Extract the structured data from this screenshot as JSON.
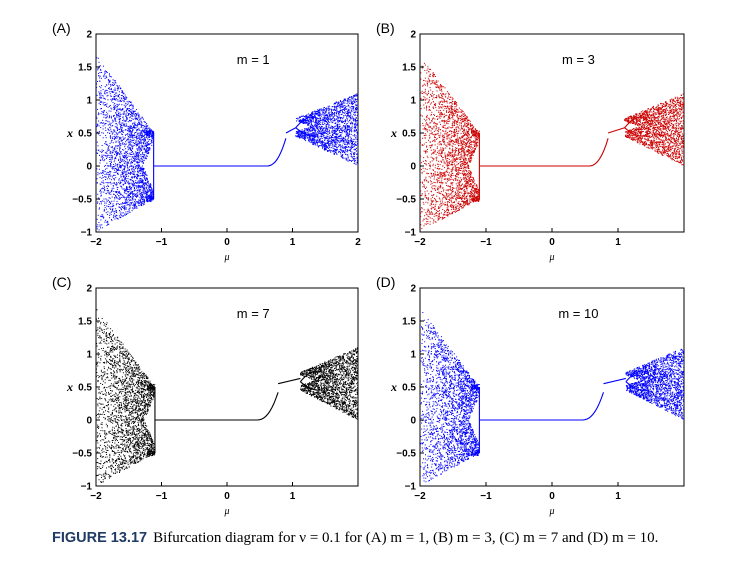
{
  "chart_data": [
    {
      "type": "scatter",
      "panel_label": "(A)",
      "annotation": "m = 1",
      "color": "#0000ff",
      "xlabel": "μ",
      "ylabel": "x",
      "xlim": [
        -2,
        2
      ],
      "ylim": [
        -1,
        2
      ],
      "xticks": [
        {
          "v": -2,
          "label": "−2"
        },
        {
          "v": -1,
          "label": "−1"
        },
        {
          "v": 0,
          "label": "0"
        },
        {
          "v": 1,
          "label": "1"
        },
        {
          "v": 2,
          "label": "2"
        }
      ],
      "yticks": [
        {
          "v": -1,
          "label": "−1"
        },
        {
          "v": -0.5,
          "label": "−0.5"
        },
        {
          "v": 0,
          "label": "0"
        },
        {
          "v": 0.5,
          "label": "0.5"
        },
        {
          "v": 1,
          "label": "1"
        },
        {
          "v": 1.5,
          "label": "1.5"
        },
        {
          "v": 2,
          "label": "2"
        }
      ],
      "data": {
        "mu_min": -2.0,
        "mu_max": 2.0,
        "left_bifurcation_mu": -1.12,
        "flat_level": 0.0,
        "rise_start_mu": 0.6,
        "right_jump_mu": 0.9,
        "upper_branch_x": 0.5,
        "right_bifurcation_mu": 1.05
      }
    },
    {
      "type": "scatter",
      "panel_label": "(B)",
      "annotation": "m = 3",
      "color": "#cc0000",
      "xlabel": "μ",
      "ylabel": "x",
      "xlim": [
        -2,
        2
      ],
      "ylim": [
        -1,
        2
      ],
      "xticks": [
        {
          "v": -2,
          "label": "−2"
        },
        {
          "v": -1,
          "label": "−1"
        },
        {
          "v": 0,
          "label": "0"
        },
        {
          "v": 1,
          "label": "1"
        }
      ],
      "yticks": [
        {
          "v": -1,
          "label": "−1"
        },
        {
          "v": -0.5,
          "label": "−0.5"
        },
        {
          "v": 0,
          "label": "0"
        },
        {
          "v": 0.5,
          "label": "0.5"
        },
        {
          "v": 1,
          "label": "1"
        },
        {
          "v": 1.5,
          "label": "1.5"
        },
        {
          "v": 2,
          "label": "2"
        }
      ],
      "data": {
        "mu_min": -2.0,
        "mu_max": 2.0,
        "left_bifurcation_mu": -1.1,
        "flat_level": 0.0,
        "rise_start_mu": 0.55,
        "right_jump_mu": 0.85,
        "upper_branch_x": 0.5,
        "right_bifurcation_mu": 1.1
      }
    },
    {
      "type": "scatter",
      "panel_label": "(C)",
      "annotation": "m = 7",
      "color": "#000000",
      "xlabel": "μ",
      "ylabel": "x",
      "xlim": [
        -2,
        2
      ],
      "ylim": [
        -1,
        2
      ],
      "xticks": [
        {
          "v": -2,
          "label": "−2"
        },
        {
          "v": -1,
          "label": "−1"
        },
        {
          "v": 0,
          "label": "0"
        },
        {
          "v": 1,
          "label": "1"
        }
      ],
      "yticks": [
        {
          "v": -1,
          "label": "−1"
        },
        {
          "v": -0.5,
          "label": "−0.5"
        },
        {
          "v": 0,
          "label": "0"
        },
        {
          "v": 0.5,
          "label": "0.5"
        },
        {
          "v": 1,
          "label": "1"
        },
        {
          "v": 1.5,
          "label": "1.5"
        },
        {
          "v": 2,
          "label": "2"
        }
      ],
      "data": {
        "mu_min": -2.0,
        "mu_max": 2.0,
        "left_bifurcation_mu": -1.1,
        "flat_level": 0.0,
        "rise_start_mu": 0.45,
        "right_jump_mu": 0.78,
        "upper_branch_x": 0.55,
        "right_bifurcation_mu": 1.12
      }
    },
    {
      "type": "scatter",
      "panel_label": "(D)",
      "annotation": "m = 10",
      "color": "#0000ff",
      "xlabel": "μ",
      "ylabel": "x",
      "xlim": [
        -2,
        2
      ],
      "ylim": [
        -1,
        2
      ],
      "xticks": [
        {
          "v": -2,
          "label": "−2"
        },
        {
          "v": -1,
          "label": "−1"
        },
        {
          "v": 0,
          "label": "0"
        },
        {
          "v": 1,
          "label": "1"
        }
      ],
      "yticks": [
        {
          "v": -1,
          "label": "−1"
        },
        {
          "v": -0.5,
          "label": "−0.5"
        },
        {
          "v": 0,
          "label": "0"
        },
        {
          "v": 0.5,
          "label": "0.5"
        },
        {
          "v": 1,
          "label": "1"
        },
        {
          "v": 1.5,
          "label": "1.5"
        },
        {
          "v": 2,
          "label": "2"
        }
      ],
      "data": {
        "mu_min": -2.0,
        "mu_max": 2.0,
        "left_bifurcation_mu": -1.1,
        "flat_level": 0.0,
        "rise_start_mu": 0.45,
        "right_jump_mu": 0.78,
        "upper_branch_x": 0.55,
        "right_bifurcation_mu": 1.12
      }
    }
  ],
  "caption": {
    "label": "FIGURE 13.17",
    "text": "Bifurcation diagram for ν = 0.1 for (A) m = 1, (B) m = 3, (C) m = 7 and (D) m = 10."
  }
}
